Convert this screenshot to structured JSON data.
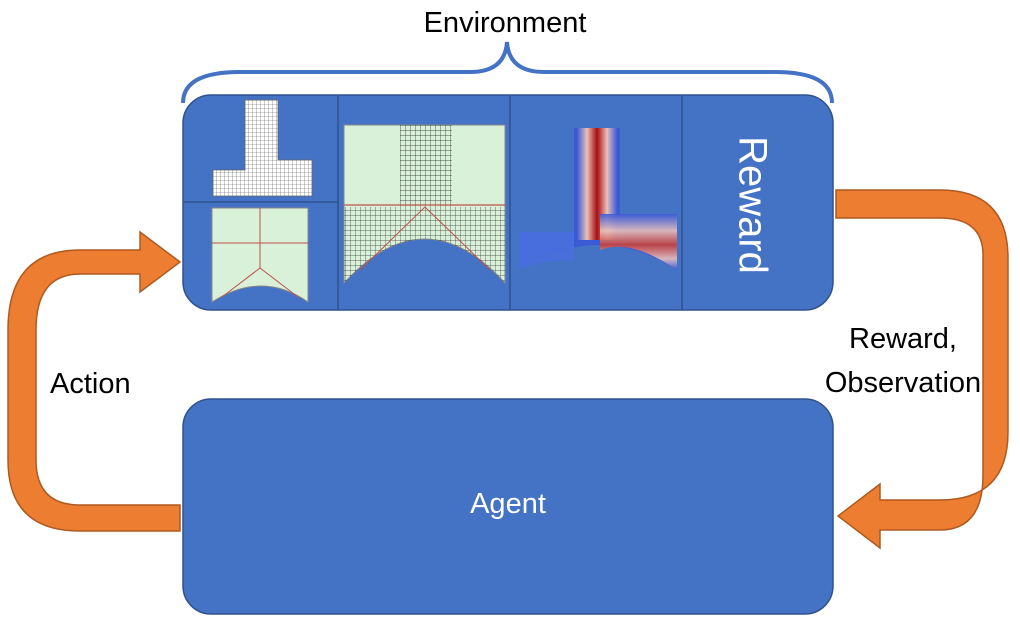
{
  "environment": {
    "title": "Environment"
  },
  "panels": {
    "reward_label": "Reward"
  },
  "agent": {
    "label": "Agent"
  },
  "arrows": {
    "action_label": "Action",
    "reward_observation_label_line1": "Reward,",
    "reward_observation_label_line2": "Observation"
  },
  "colors": {
    "box_blue": "#4472c4",
    "box_border": "#2f528f",
    "brace_blue": "#4472c4",
    "arrow_orange": "#ed7d31",
    "arrow_border": "#ae5a21",
    "mesh_fill": "#d9f0d9",
    "mesh_line": "#c0504d"
  }
}
